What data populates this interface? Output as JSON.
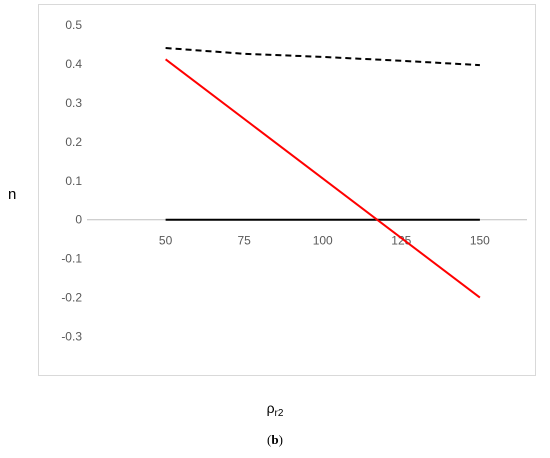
{
  "chart_data": {
    "type": "line",
    "xlabel_main": "ρ",
    "xlabel_sub": "r2",
    "ylabel": "n",
    "caption_open": "(",
    "caption_letter": "b",
    "caption_close": ")",
    "x_ticks": [
      50,
      75,
      100,
      125,
      150
    ],
    "y_ticks": [
      0.5,
      0.4,
      0.3,
      0.2,
      0.1,
      0,
      -0.1,
      -0.2,
      -0.3
    ],
    "xlim": [
      25,
      165
    ],
    "ylim": [
      -0.35,
      0.5
    ],
    "grid": false,
    "series": [
      {
        "x": [
          50,
          150
        ],
        "y": [
          0,
          0
        ],
        "color": "#000000",
        "style": "solid"
      },
      {
        "x": [
          50,
          75,
          100,
          125,
          150
        ],
        "y": [
          0.441,
          0.426,
          0.418,
          0.408,
          0.397
        ],
        "color": "#000000",
        "style": "dashed"
      },
      {
        "x": [
          50,
          150
        ],
        "y": [
          0.412,
          -0.2
        ],
        "color": "#ff0000",
        "style": "solid"
      }
    ]
  }
}
